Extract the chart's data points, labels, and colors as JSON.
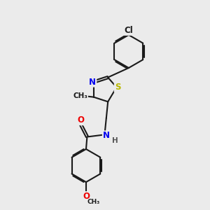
{
  "bg_color": "#ebebeb",
  "bond_color": "#1a1a1a",
  "bond_width": 1.5,
  "atom_colors": {
    "N": "#0000ee",
    "O": "#ee0000",
    "S": "#b8b800",
    "Cl": "#1a1a1a",
    "C": "#1a1a1a",
    "H": "#555555"
  },
  "font_size": 8.5,
  "dbo": 0.055,
  "shrink": 0.1
}
